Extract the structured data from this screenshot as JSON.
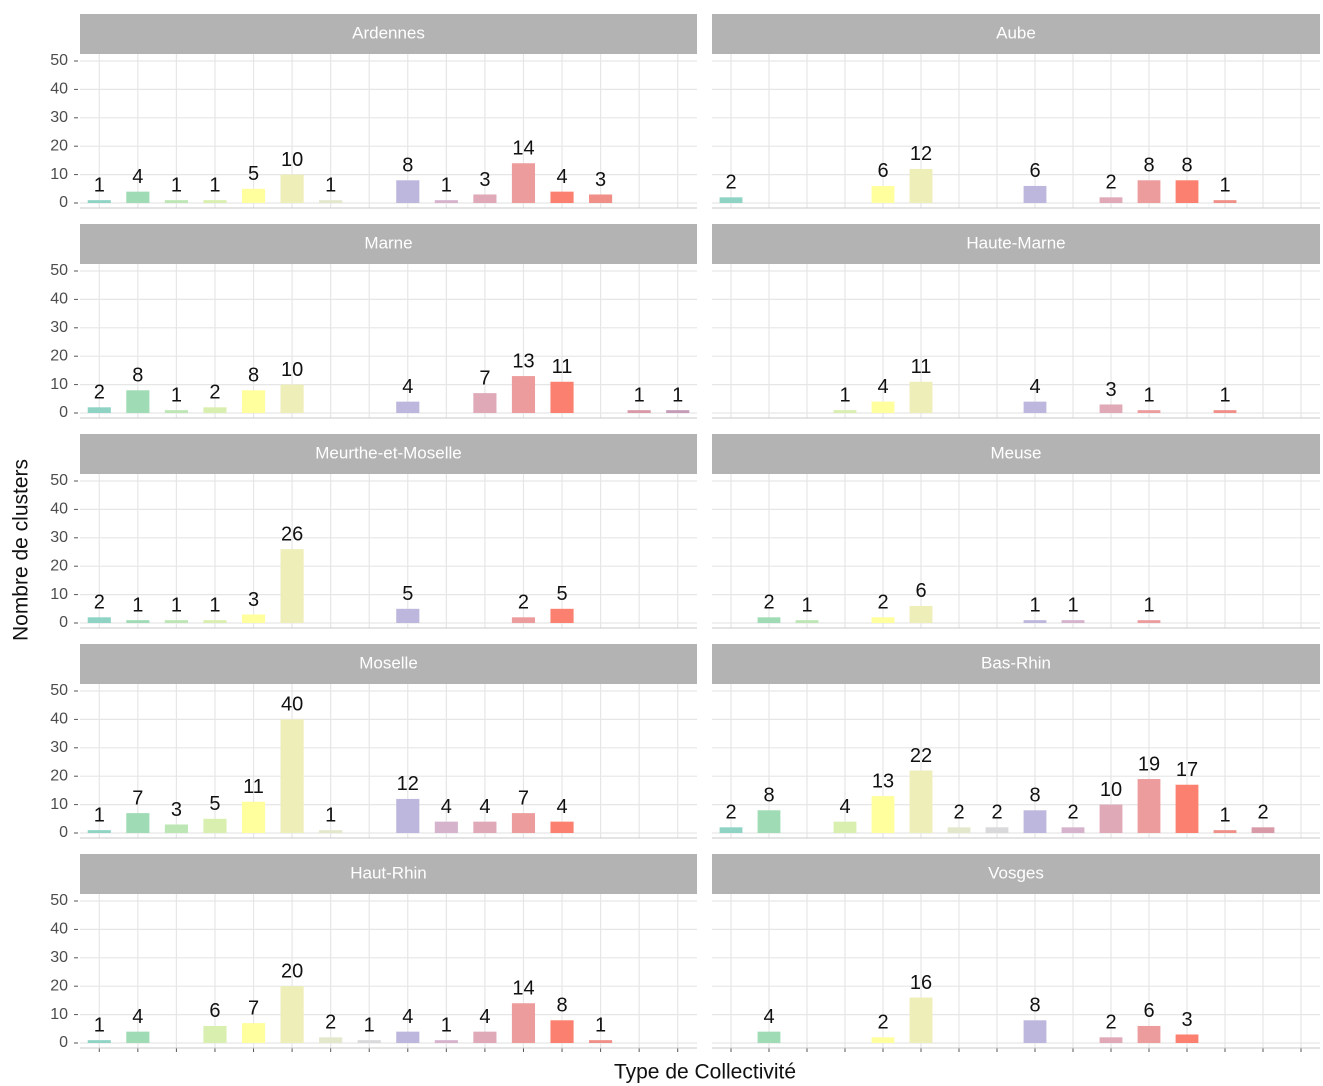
{
  "chart_data": {
    "type": "bar",
    "xlabel": "Type de Collectivité",
    "ylabel": "Nombre de clusters",
    "categories": [
      null,
      null,
      null,
      null,
      null,
      null,
      null,
      null,
      null,
      null,
      null,
      null,
      null,
      null,
      null,
      null
    ],
    "colors": [
      "#8fd3c4",
      "#9fdcb5",
      "#bde6b5",
      "#d9efb0",
      "#ffff9e",
      "#eeeeb8",
      "#e3e8cc",
      "#d9d9dc",
      "#bdb7dd",
      "#d6b3cc",
      "#dfa9b8",
      "#ec9c9c",
      "#fb8070",
      "#f08f88",
      "#d99aa8",
      "#c59cb8"
    ],
    "ylim": [
      0,
      50
    ],
    "yticks": [
      0,
      10,
      20,
      30,
      40,
      50
    ],
    "grid": true,
    "facets": [
      {
        "title": "Ardennes",
        "values": [
          1,
          4,
          1,
          1,
          5,
          10,
          1,
          null,
          8,
          1,
          3,
          14,
          4,
          3,
          null,
          null
        ]
      },
      {
        "title": "Aube",
        "values": [
          2,
          null,
          null,
          null,
          6,
          12,
          null,
          null,
          6,
          null,
          2,
          8,
          8,
          1,
          null,
          null
        ]
      },
      {
        "title": "Marne",
        "values": [
          2,
          8,
          1,
          2,
          8,
          10,
          null,
          null,
          4,
          null,
          7,
          13,
          11,
          null,
          1,
          1
        ]
      },
      {
        "title": "Haute-Marne",
        "values": [
          null,
          null,
          null,
          1,
          4,
          11,
          null,
          null,
          4,
          null,
          3,
          1,
          null,
          1,
          null,
          null
        ]
      },
      {
        "title": "Meurthe-et-Moselle",
        "values": [
          2,
          1,
          1,
          1,
          3,
          26,
          null,
          null,
          5,
          null,
          null,
          2,
          5,
          null,
          null,
          null
        ]
      },
      {
        "title": "Meuse",
        "values": [
          null,
          2,
          1,
          null,
          2,
          6,
          null,
          null,
          1,
          1,
          null,
          1,
          null,
          null,
          null,
          null
        ]
      },
      {
        "title": "Moselle",
        "values": [
          1,
          7,
          3,
          5,
          11,
          40,
          1,
          null,
          12,
          4,
          4,
          7,
          4,
          null,
          null,
          null
        ]
      },
      {
        "title": "Bas-Rhin",
        "values": [
          2,
          8,
          null,
          4,
          13,
          22,
          2,
          2,
          8,
          2,
          10,
          19,
          17,
          1,
          2,
          null
        ]
      },
      {
        "title": "Haut-Rhin",
        "values": [
          1,
          4,
          null,
          6,
          7,
          20,
          2,
          1,
          4,
          1,
          4,
          14,
          8,
          1,
          null,
          null
        ]
      },
      {
        "title": "Vosges",
        "values": [
          null,
          4,
          null,
          null,
          2,
          16,
          null,
          null,
          8,
          null,
          2,
          6,
          3,
          null,
          null,
          null
        ]
      }
    ]
  }
}
